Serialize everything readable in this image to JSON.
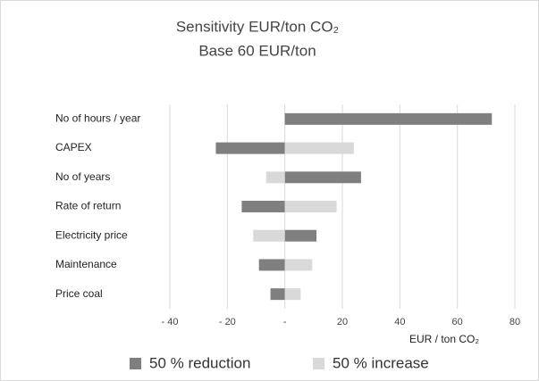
{
  "chart_data": {
    "type": "tornado",
    "title": "Sensitivity EUR/ton CO₂",
    "subtitle": "Base 60 EUR/ton",
    "x_label": "EUR / ton CO₂",
    "categories": [
      "No of hours / year",
      "CAPEX",
      "No of years",
      "Rate of return",
      "Electricity price",
      "Maintenance",
      "Price coal"
    ],
    "series": [
      {
        "name": "50 % reduction",
        "color": "#7f7f7f",
        "values": [
          72,
          -24,
          26.5,
          -15,
          11,
          -9,
          -5
        ]
      },
      {
        "name": "50 % increase",
        "color": "#d9d9d9",
        "values": [
          null,
          24,
          -6.5,
          18,
          -11,
          9.5,
          5.5
        ]
      }
    ],
    "xlim": [
      -40,
      80
    ],
    "xticks": [
      {
        "value": -40,
        "label": "- 40"
      },
      {
        "value": -20,
        "label": "- 20"
      },
      {
        "value": 0,
        "label": "-"
      },
      20,
      40,
      60,
      80
    ],
    "grid": true,
    "legend": "bottom"
  }
}
